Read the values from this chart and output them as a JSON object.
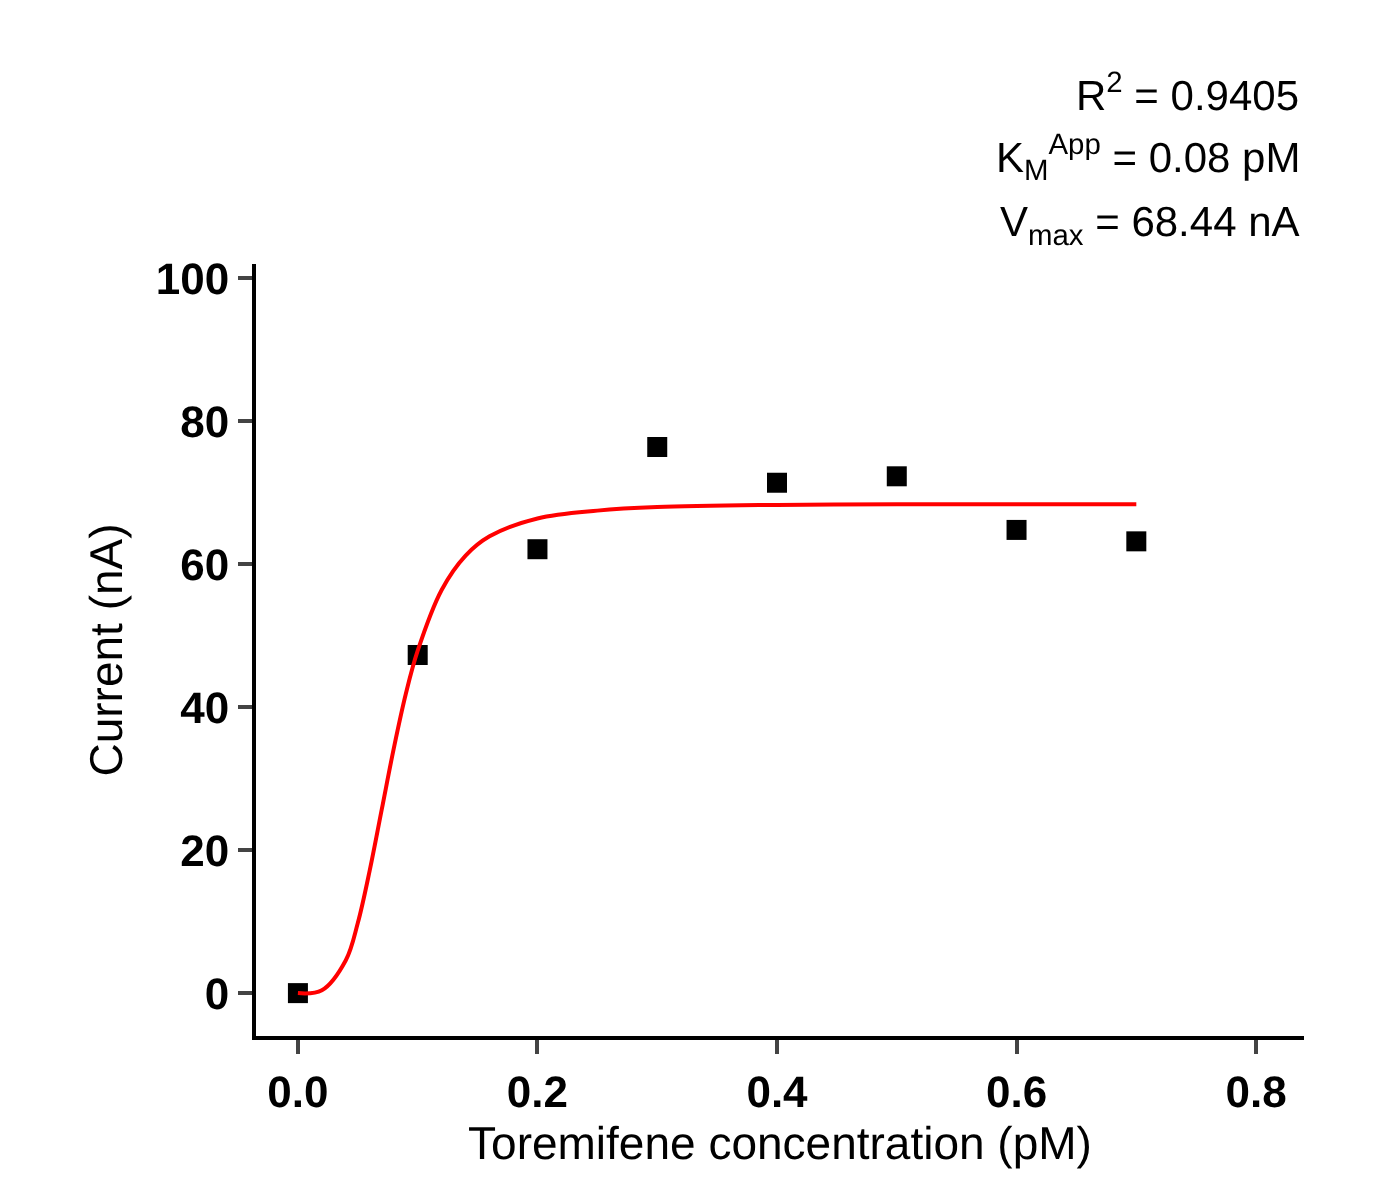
{
  "chart_data": {
    "type": "scatter",
    "xlabel": "Toremifene concentration (pM)",
    "ylabel": "Current (nA)",
    "xlim": [
      -0.035,
      0.84
    ],
    "xticks": [
      {
        "value": 0,
        "label": "0.0"
      },
      0.2,
      0.4,
      0.6,
      0.8
    ],
    "ylim": [
      -6,
      102
    ],
    "yticks": [
      0,
      20,
      40,
      60,
      80,
      100
    ],
    "grid": false,
    "series": [
      {
        "type": "scatter",
        "color": "#000000",
        "marker": "square",
        "x": [
          0,
          0.1,
          0.2,
          0.3,
          0.4,
          0.5,
          0.6,
          0.7
        ],
        "values": [
          0,
          47.3,
          62.1,
          76.4,
          71.4,
          72.3,
          64.8,
          63.2
        ]
      },
      {
        "type": "line",
        "color": "#ff0000",
        "marker": "none",
        "line_style": "solid",
        "x": [
          0,
          0.02,
          0.04,
          0.05,
          0.06,
          0.07,
          0.08,
          0.09,
          0.1,
          0.12,
          0.14,
          0.16,
          0.2,
          0.25,
          0.3,
          0.4,
          0.5,
          0.6,
          0.7
        ],
        "values": [
          0,
          0.4,
          4.6,
          9.8,
          17.2,
          25.7,
          34.2,
          41.8,
          47.9,
          56.4,
          61.2,
          63.9,
          66.4,
          67.5,
          68.0,
          68.3,
          68.4,
          68.4,
          68.4
        ]
      }
    ],
    "annotations": [
      "R$^{2}$ = 0.9405",
      "K$_{M}$$^{App}$ = 0.08 pM",
      "V$_{max}$ = 68.44 nA"
    ]
  }
}
